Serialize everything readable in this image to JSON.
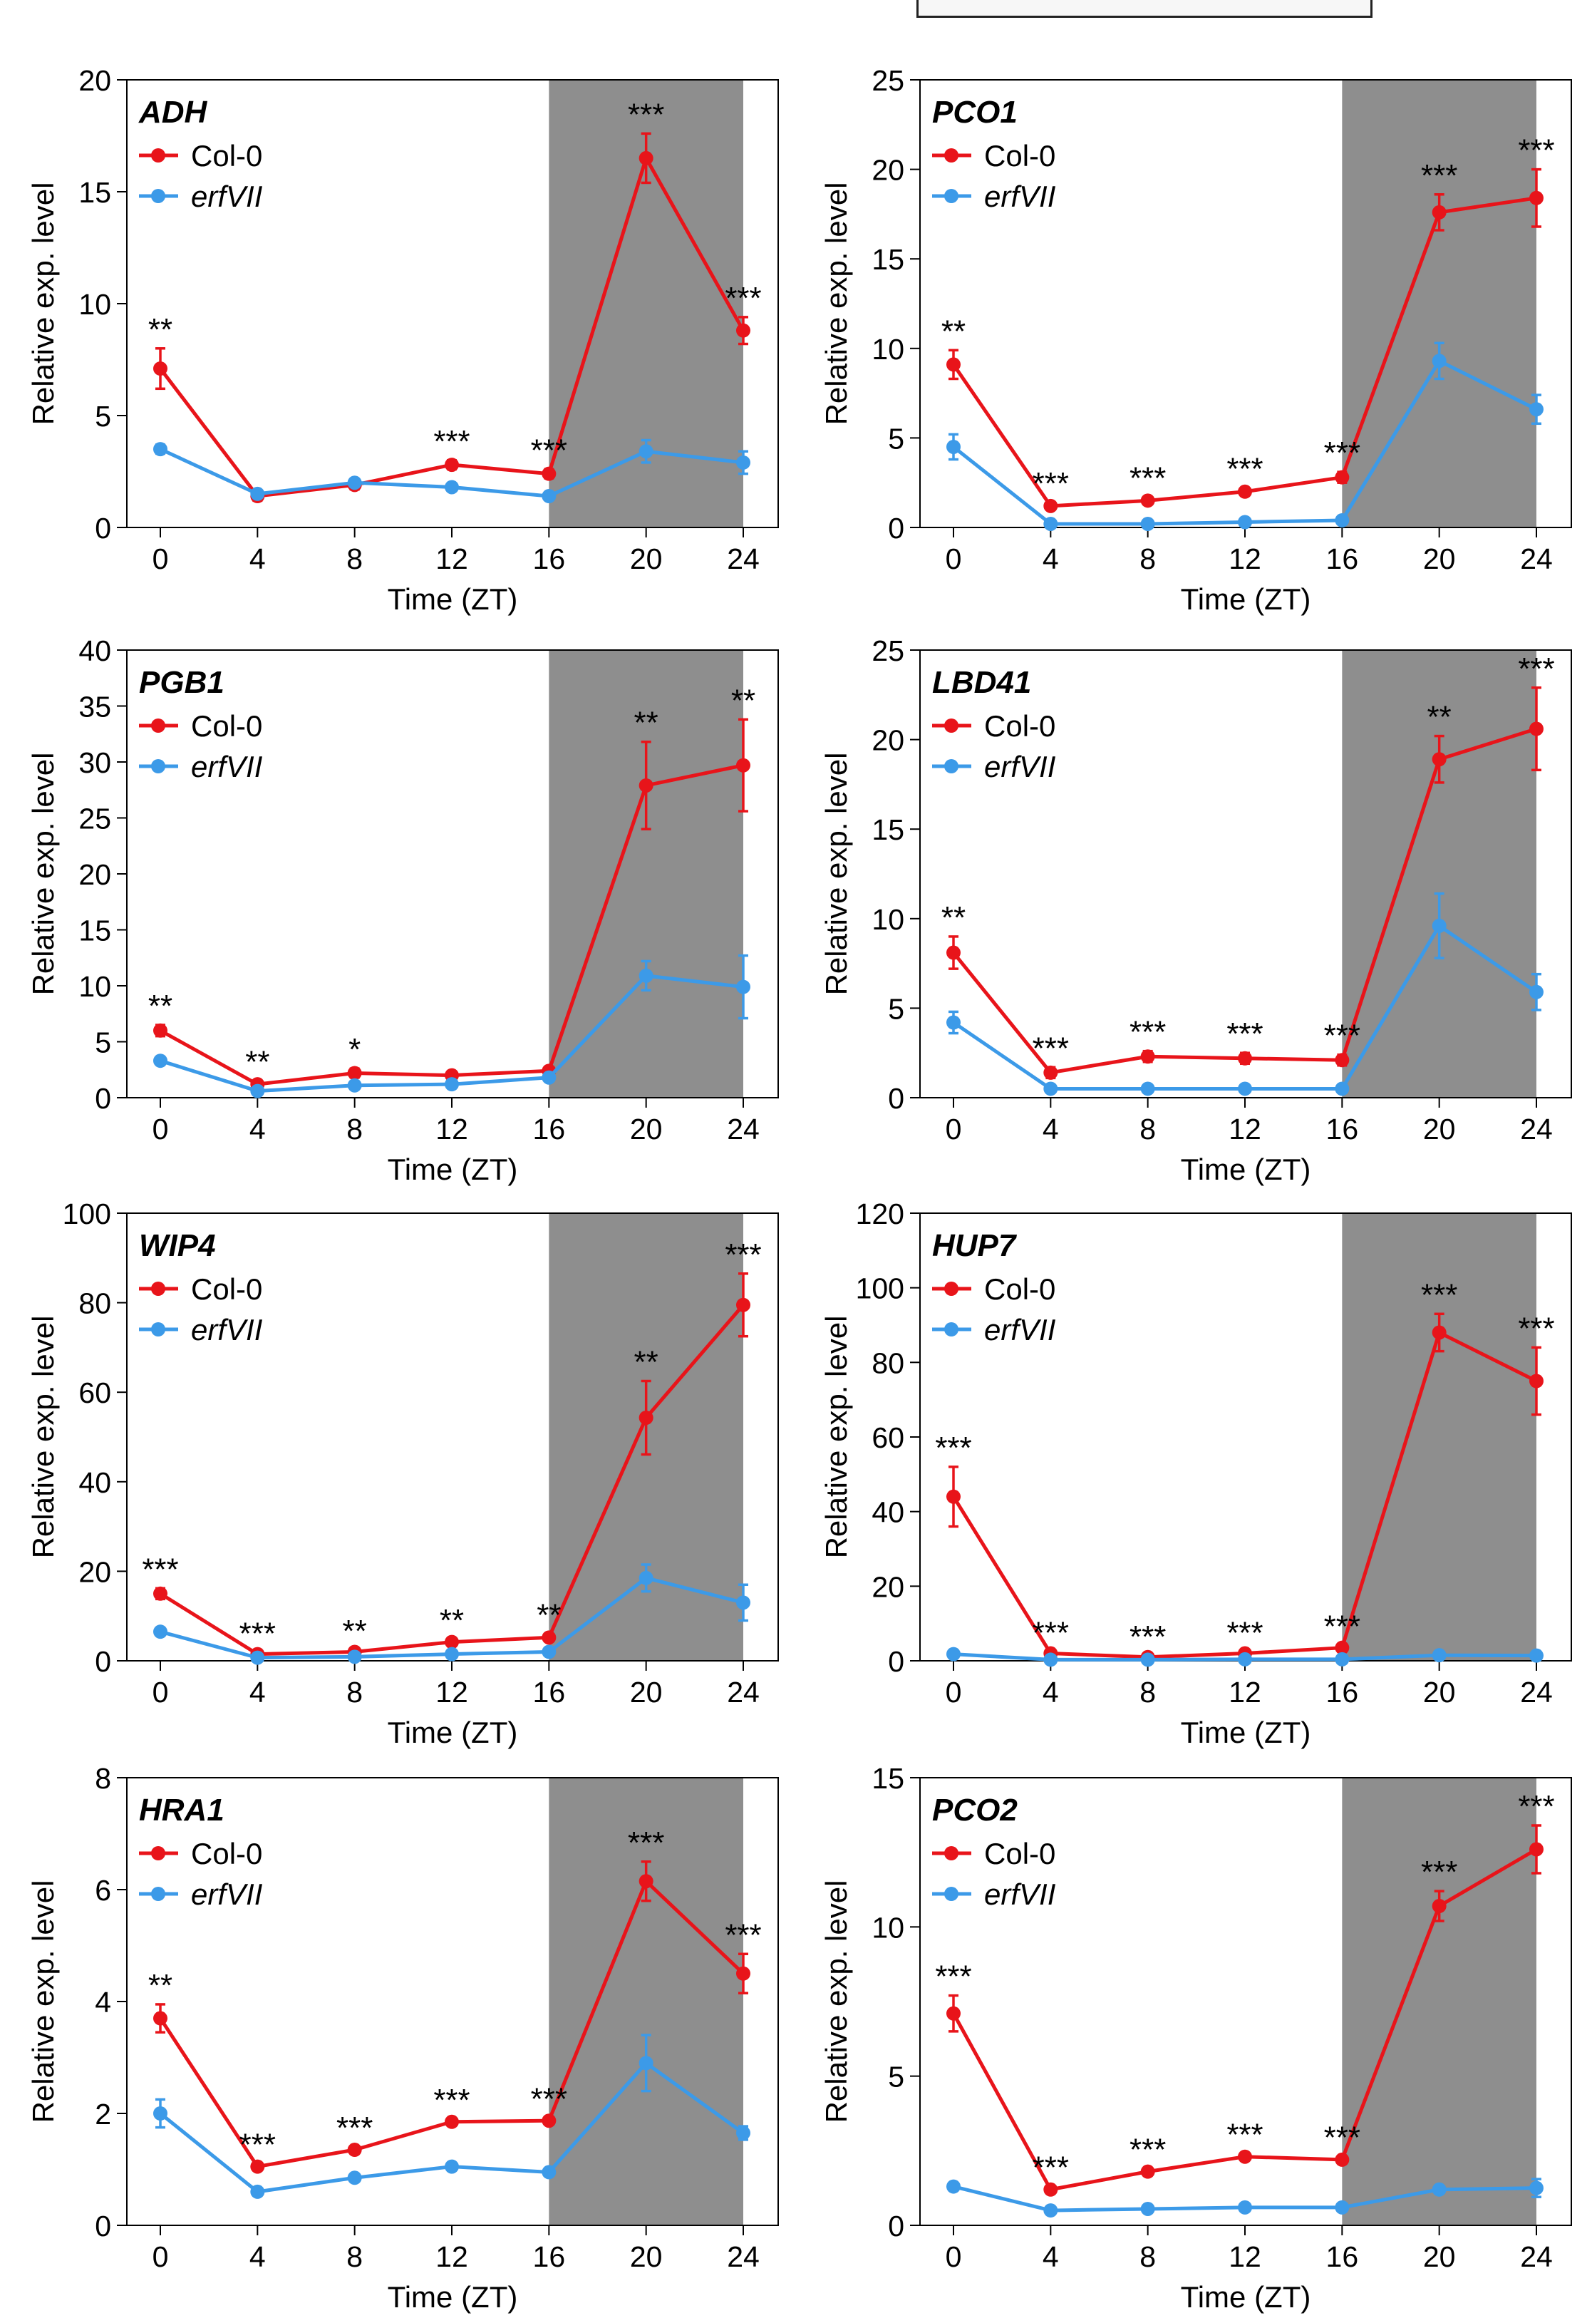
{
  "figure": {
    "colors": {
      "col0": "#e8141a",
      "erfvii": "#3c9ae8",
      "night": "#8e8e8e"
    },
    "xlabel": "Time (ZT)",
    "ylabel": "Relative exp. level",
    "legend": [
      "Col-0",
      "erfVII"
    ]
  },
  "chart_data": [
    {
      "type": "line",
      "title": "ADH",
      "xlabel": "Time (ZT)",
      "ylabel": "Relative exp. level",
      "x": [
        0,
        4,
        8,
        12,
        16,
        20,
        24
      ],
      "xticks": [
        "0",
        "4",
        "8",
        "12",
        "16",
        "20",
        "24"
      ],
      "ylim": [
        0,
        20
      ],
      "yticks": [
        0,
        5,
        10,
        15,
        20
      ],
      "shade": [
        16,
        24
      ],
      "series": [
        {
          "name": "Col-0",
          "values": [
            7.1,
            1.4,
            1.9,
            2.8,
            2.4,
            16.5,
            8.8
          ],
          "err": [
            0.9,
            0.2,
            0.2,
            0.2,
            0.2,
            1.1,
            0.6
          ]
        },
        {
          "name": "erfVII",
          "values": [
            3.5,
            1.5,
            2.0,
            1.8,
            1.4,
            3.4,
            2.9
          ],
          "err": [
            0.2,
            0.1,
            0.1,
            0.1,
            0.1,
            0.5,
            0.5
          ]
        }
      ],
      "significance": [
        "**",
        "",
        "",
        "***",
        "***",
        "***",
        "***"
      ]
    },
    {
      "type": "line",
      "title": "PCO1",
      "xlabel": "Time (ZT)",
      "ylabel": "Relative exp. level",
      "x": [
        0,
        4,
        8,
        12,
        16,
        20,
        24
      ],
      "xticks": [
        "0",
        "4",
        "8",
        "12",
        "16",
        "20",
        "24"
      ],
      "ylim": [
        0,
        25
      ],
      "yticks": [
        0,
        5,
        10,
        15,
        20,
        25
      ],
      "shade": [
        16,
        24
      ],
      "series": [
        {
          "name": "Col-0",
          "values": [
            9.1,
            1.2,
            1.5,
            2.0,
            2.8,
            17.6,
            18.4
          ],
          "err": [
            0.8,
            0.2,
            0.2,
            0.2,
            0.3,
            1.0,
            1.6
          ]
        },
        {
          "name": "erfVII",
          "values": [
            4.5,
            0.2,
            0.2,
            0.3,
            0.4,
            9.3,
            6.6
          ],
          "err": [
            0.7,
            0.1,
            0.1,
            0.1,
            0.1,
            1.0,
            0.8
          ]
        }
      ],
      "significance": [
        "**",
        "***",
        "***",
        "***",
        "***",
        "***",
        "***"
      ]
    },
    {
      "type": "line",
      "title": "PGB1",
      "xlabel": "Time (ZT)",
      "ylabel": "Relative exp. level",
      "x": [
        0,
        4,
        8,
        12,
        16,
        20,
        24
      ],
      "xticks": [
        "0",
        "4",
        "8",
        "12",
        "16",
        "20",
        "24"
      ],
      "ylim": [
        0,
        40
      ],
      "yticks": [
        0,
        5,
        10,
        15,
        20,
        25,
        30,
        35,
        40
      ],
      "shade": [
        16,
        24
      ],
      "series": [
        {
          "name": "Col-0",
          "values": [
            6.0,
            1.2,
            2.2,
            2.0,
            2.4,
            27.9,
            29.7
          ],
          "err": [
            0.5,
            0.3,
            0.4,
            0.3,
            0.3,
            3.9,
            4.1
          ]
        },
        {
          "name": "erfVII",
          "values": [
            3.3,
            0.6,
            1.1,
            1.2,
            1.8,
            10.9,
            9.9
          ],
          "err": [
            0.3,
            0.2,
            0.2,
            0.2,
            0.3,
            1.3,
            2.8
          ]
        }
      ],
      "significance": [
        "**",
        "**",
        "*",
        "",
        "",
        "**",
        "**"
      ]
    },
    {
      "type": "line",
      "title": "LBD41",
      "xlabel": "Time (ZT)",
      "ylabel": "Relative exp. level",
      "x": [
        0,
        4,
        8,
        12,
        16,
        20,
        24
      ],
      "xticks": [
        "0",
        "4",
        "8",
        "12",
        "16",
        "20",
        "24"
      ],
      "ylim": [
        0,
        25
      ],
      "yticks": [
        0,
        5,
        10,
        15,
        20,
        25
      ],
      "shade": [
        16,
        24
      ],
      "series": [
        {
          "name": "Col-0",
          "values": [
            8.1,
            1.4,
            2.3,
            2.2,
            2.1,
            18.9,
            20.6
          ],
          "err": [
            0.9,
            0.3,
            0.3,
            0.3,
            0.3,
            1.3,
            2.3
          ]
        },
        {
          "name": "erfVII",
          "values": [
            4.2,
            0.5,
            0.5,
            0.5,
            0.5,
            9.6,
            5.9
          ],
          "err": [
            0.6,
            0.1,
            0.1,
            0.1,
            0.1,
            1.8,
            1.0
          ]
        }
      ],
      "significance": [
        "**",
        "***",
        "***",
        "***",
        "***",
        "**",
        "***"
      ]
    },
    {
      "type": "line",
      "title": "WIP4",
      "xlabel": "Time (ZT)",
      "ylabel": "Relative exp. level",
      "x": [
        0,
        4,
        8,
        12,
        16,
        20,
        24
      ],
      "xticks": [
        "0",
        "4",
        "8",
        "12",
        "16",
        "20",
        "24"
      ],
      "ylim": [
        0,
        100
      ],
      "yticks": [
        0,
        20,
        40,
        60,
        80,
        100
      ],
      "shade": [
        16,
        24
      ],
      "series": [
        {
          "name": "Col-0",
          "values": [
            15.0,
            1.5,
            2.0,
            4.2,
            5.2,
            54.3,
            79.5
          ],
          "err": [
            1.2,
            0.3,
            0.4,
            0.6,
            0.8,
            8.2,
            7.0
          ]
        },
        {
          "name": "erfVII",
          "values": [
            6.5,
            0.7,
            0.9,
            1.5,
            2.0,
            18.5,
            13.0
          ],
          "err": [
            0.6,
            0.2,
            0.2,
            0.3,
            0.4,
            3.0,
            4.0
          ]
        }
      ],
      "significance": [
        "***",
        "***",
        "**",
        "**",
        "**",
        "**",
        "***"
      ]
    },
    {
      "type": "line",
      "title": "HUP7",
      "xlabel": "Time (ZT)",
      "ylabel": "Relative exp. level",
      "x": [
        0,
        4,
        8,
        12,
        16,
        20,
        24
      ],
      "xticks": [
        "0",
        "4",
        "8",
        "12",
        "16",
        "20",
        "24"
      ],
      "ylim": [
        0,
        120
      ],
      "yticks": [
        0,
        20,
        40,
        60,
        80,
        100,
        120
      ],
      "shade": [
        16,
        24
      ],
      "series": [
        {
          "name": "Col-0",
          "values": [
            44.0,
            2.0,
            1.0,
            2.0,
            3.5,
            88.0,
            75.0
          ],
          "err": [
            8.0,
            0.4,
            0.3,
            0.4,
            0.6,
            5.0,
            9.0
          ]
        },
        {
          "name": "erfVII",
          "values": [
            1.8,
            0.3,
            0.3,
            0.4,
            0.4,
            1.5,
            1.4
          ],
          "err": [
            0.3,
            0.1,
            0.1,
            0.1,
            0.1,
            0.4,
            0.3
          ]
        }
      ],
      "significance": [
        "***",
        "***",
        "***",
        "***",
        "***",
        "***",
        "***"
      ]
    },
    {
      "type": "line",
      "title": "HRA1",
      "xlabel": "Time (ZT)",
      "ylabel": "Relative exp. level",
      "x": [
        0,
        4,
        8,
        12,
        16,
        20,
        24
      ],
      "xticks": [
        "0",
        "4",
        "8",
        "12",
        "16",
        "20",
        "24"
      ],
      "ylim": [
        0,
        8
      ],
      "yticks": [
        0,
        2,
        4,
        6,
        8
      ],
      "shade": [
        16,
        24
      ],
      "series": [
        {
          "name": "Col-0",
          "values": [
            3.7,
            1.05,
            1.35,
            1.85,
            1.87,
            6.15,
            4.5
          ],
          "err": [
            0.25,
            0.05,
            0.05,
            0.05,
            0.05,
            0.35,
            0.35
          ]
        },
        {
          "name": "erfVII",
          "values": [
            2.0,
            0.6,
            0.85,
            1.05,
            0.95,
            2.9,
            1.65
          ],
          "err": [
            0.25,
            0.05,
            0.05,
            0.05,
            0.05,
            0.5,
            0.12
          ]
        }
      ],
      "significance": [
        "**",
        "***",
        "***",
        "***",
        "***",
        "***",
        "***"
      ]
    },
    {
      "type": "line",
      "title": "PCO2",
      "xlabel": "Time (ZT)",
      "ylabel": "Relative exp. level",
      "x": [
        0,
        4,
        8,
        12,
        16,
        20,
        24
      ],
      "xticks": [
        "0",
        "4",
        "8",
        "12",
        "16",
        "20",
        "24"
      ],
      "ylim": [
        0,
        15
      ],
      "yticks": [
        0,
        5,
        10,
        15
      ],
      "shade": [
        16,
        24
      ],
      "series": [
        {
          "name": "Col-0",
          "values": [
            7.1,
            1.2,
            1.8,
            2.3,
            2.2,
            10.7,
            12.6
          ],
          "err": [
            0.6,
            0.1,
            0.1,
            0.1,
            0.1,
            0.5,
            0.8
          ]
        },
        {
          "name": "erfVII",
          "values": [
            1.3,
            0.5,
            0.55,
            0.6,
            0.6,
            1.2,
            1.25
          ],
          "err": [
            0.1,
            0.05,
            0.05,
            0.05,
            0.05,
            0.1,
            0.3
          ]
        }
      ],
      "significance": [
        "***",
        "***",
        "***",
        "***",
        "***",
        "***",
        "***"
      ]
    }
  ]
}
